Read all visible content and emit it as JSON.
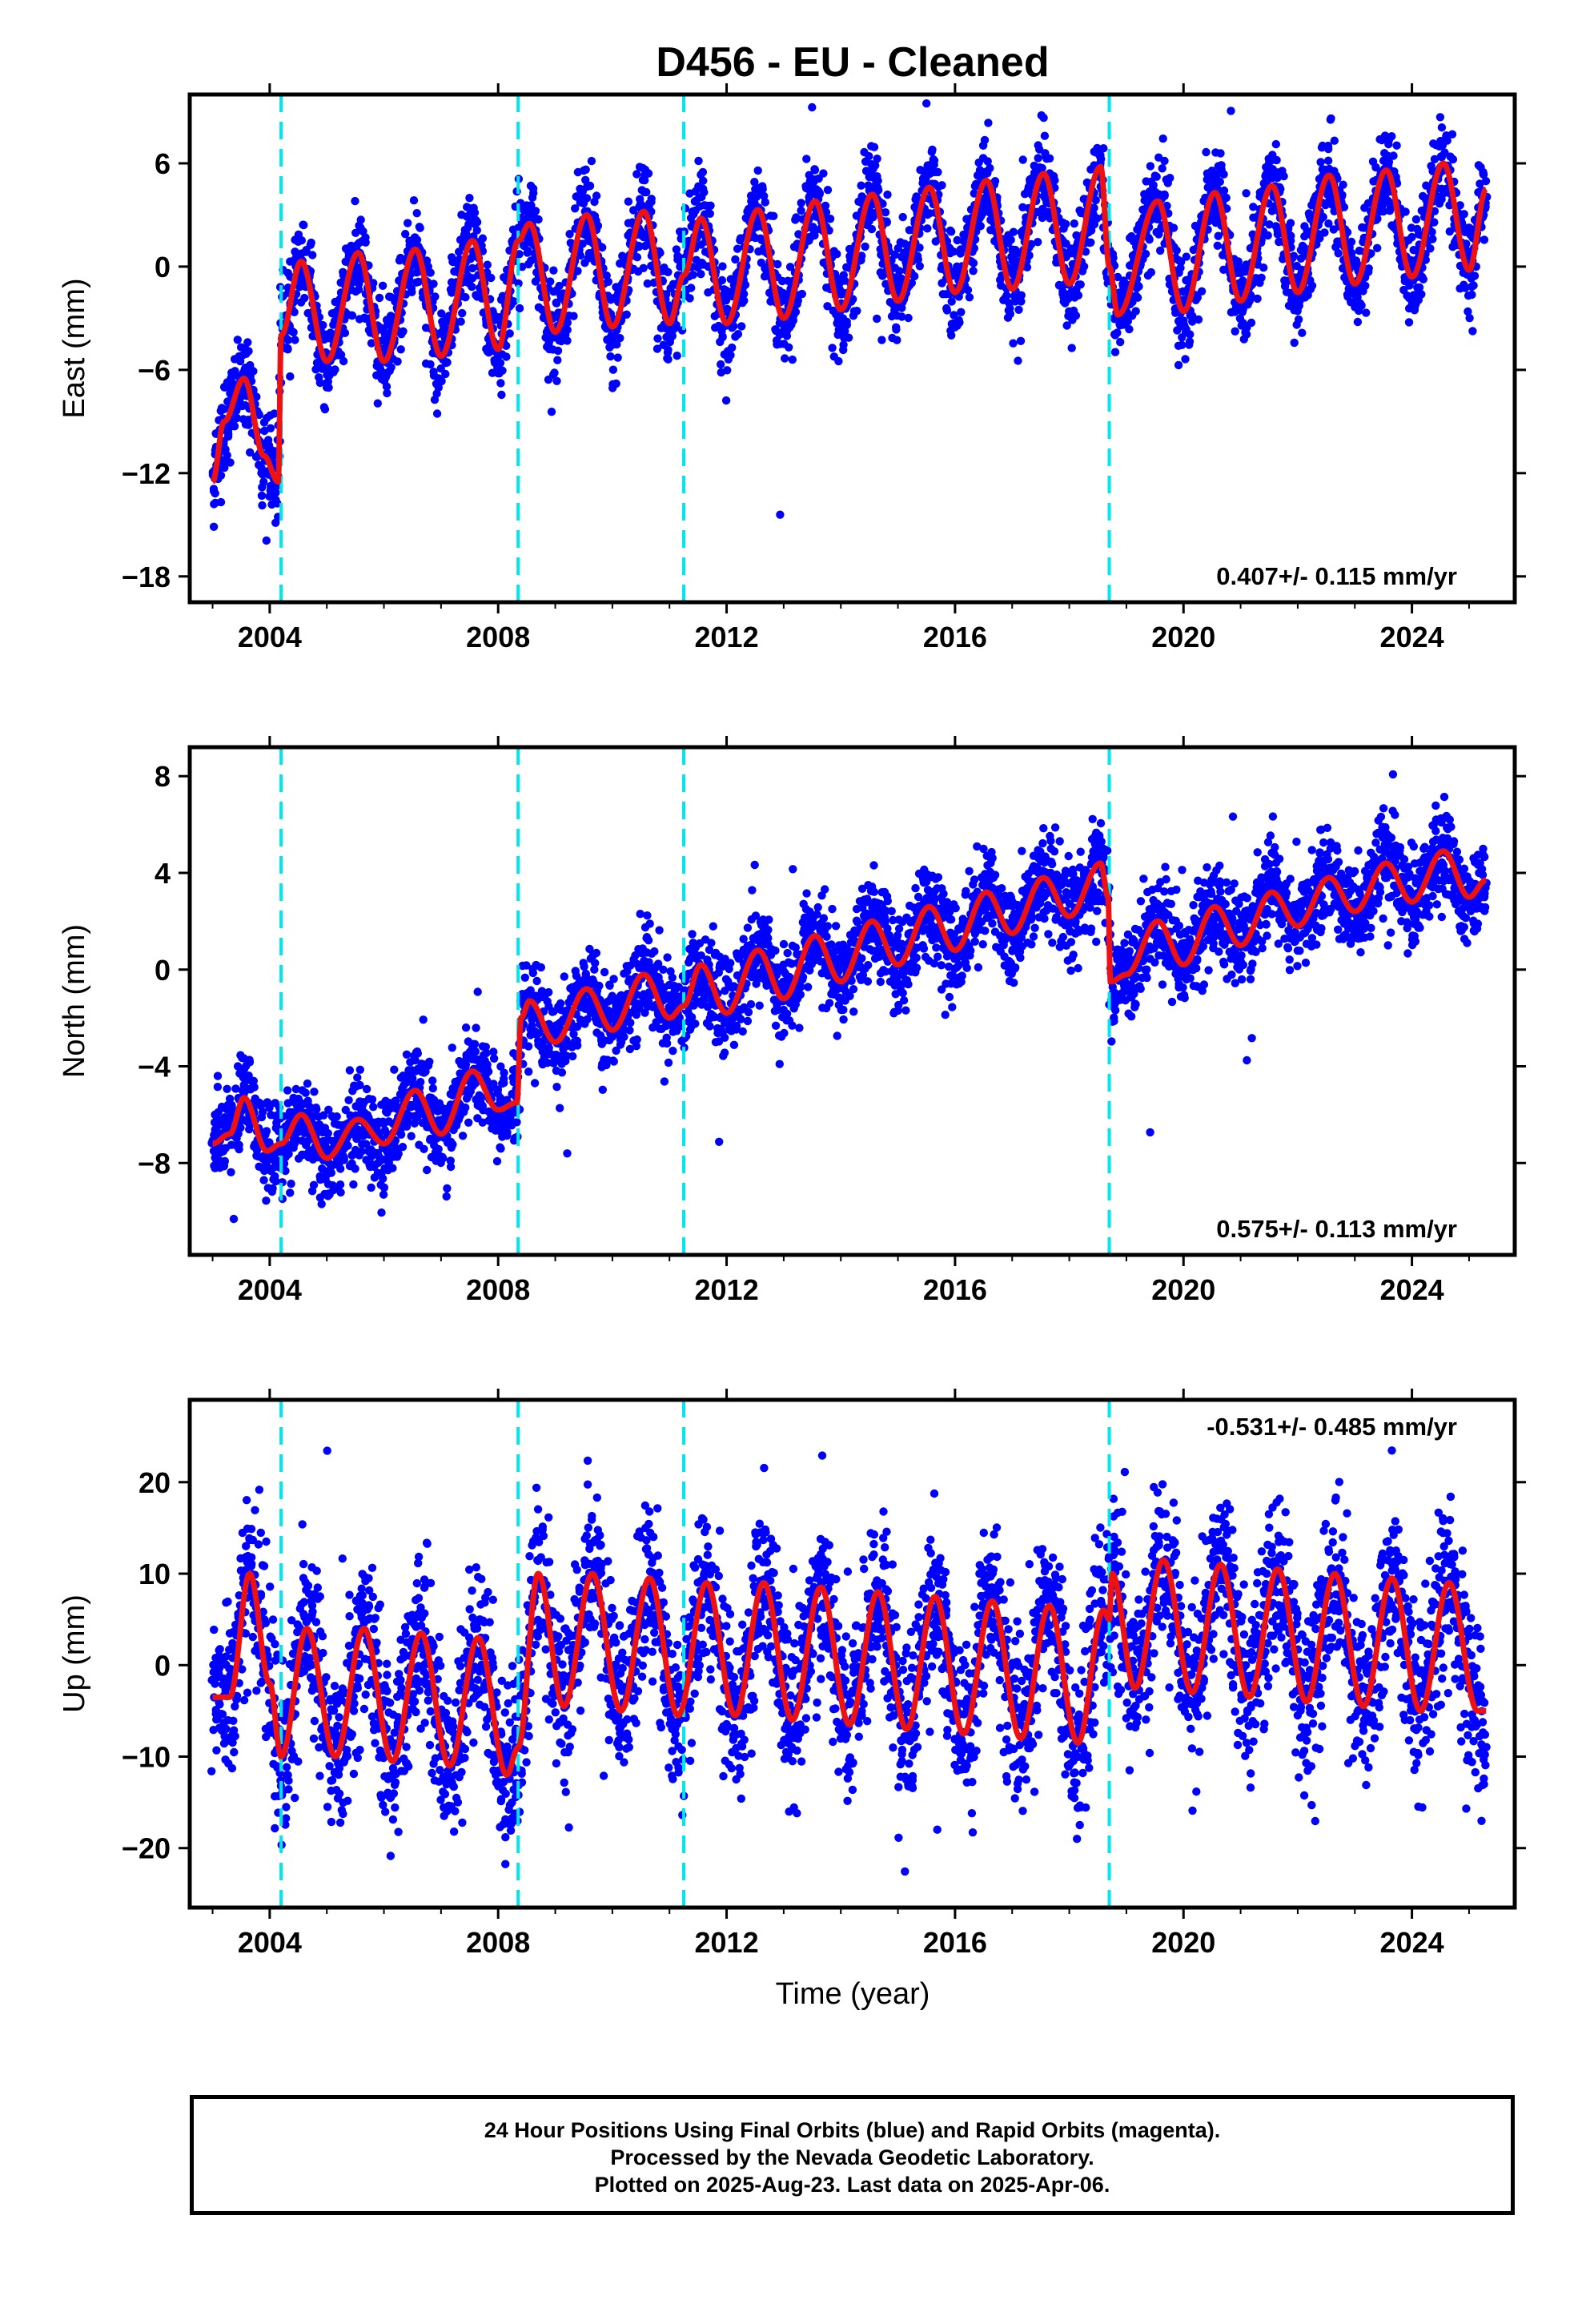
{
  "chart_data": {
    "title": "D456  - EU - Cleaned",
    "type": "scatter",
    "x_axis": {
      "label": "Time (year)",
      "range": [
        2002.6,
        2025.8
      ],
      "ticks": [
        2004,
        2008,
        2012,
        2016,
        2020,
        2024
      ]
    },
    "step_epochs": [
      2004.2,
      2008.35,
      2011.25,
      2018.7
    ],
    "series_legend": {
      "points": "Final Orbits (blue)",
      "model": "model fit (red)"
    },
    "panels": [
      {
        "name": "east",
        "ylabel": "East (mm)",
        "ylim": [
          -19.5,
          10
        ],
        "yticks": [
          -18,
          -12,
          -6,
          0,
          6
        ],
        "velocity": "0.407+/- 0.115 mm/yr",
        "velocity_placement": "bottom-right",
        "model_points": [
          [
            2003.0,
            -12.5
          ],
          [
            2003.2,
            -9.0
          ],
          [
            2003.55,
            -6.5
          ],
          [
            2003.9,
            -11.0
          ],
          [
            2004.15,
            -12.5
          ],
          [
            2004.2,
            -4.0
          ],
          [
            2004.55,
            0.3
          ],
          [
            2005.0,
            -5.5
          ],
          [
            2005.55,
            0.8
          ],
          [
            2006.0,
            -5.5
          ],
          [
            2006.55,
            1.0
          ],
          [
            2007.0,
            -5.2
          ],
          [
            2007.55,
            1.5
          ],
          [
            2008.0,
            -4.8
          ],
          [
            2008.35,
            1.5
          ],
          [
            2008.55,
            2.5
          ],
          [
            2009.0,
            -3.8
          ],
          [
            2009.55,
            3.0
          ],
          [
            2010.0,
            -3.5
          ],
          [
            2010.55,
            3.2
          ],
          [
            2011.0,
            -3.3
          ],
          [
            2011.25,
            -0.5
          ],
          [
            2011.55,
            2.8
          ],
          [
            2012.0,
            -3.3
          ],
          [
            2012.55,
            3.3
          ],
          [
            2013.0,
            -3.0
          ],
          [
            2013.55,
            3.8
          ],
          [
            2014.0,
            -2.5
          ],
          [
            2014.55,
            4.2
          ],
          [
            2015.0,
            -2.0
          ],
          [
            2015.55,
            4.6
          ],
          [
            2016.0,
            -1.5
          ],
          [
            2016.55,
            5.0
          ],
          [
            2017.0,
            -1.3
          ],
          [
            2017.55,
            5.4
          ],
          [
            2018.0,
            -1.0
          ],
          [
            2018.55,
            5.8
          ],
          [
            2018.7,
            0.0
          ],
          [
            2018.85,
            -2.8
          ],
          [
            2019.55,
            3.8
          ],
          [
            2020.0,
            -2.6
          ],
          [
            2020.55,
            4.3
          ],
          [
            2021.0,
            -2.0
          ],
          [
            2021.55,
            4.7
          ],
          [
            2022.0,
            -1.5
          ],
          [
            2022.55,
            5.3
          ],
          [
            2023.0,
            -1.0
          ],
          [
            2023.55,
            5.6
          ],
          [
            2024.0,
            -0.6
          ],
          [
            2024.55,
            6.0
          ],
          [
            2025.0,
            -0.2
          ],
          [
            2025.3,
            4.5
          ]
        ]
      },
      {
        "name": "north",
        "ylabel": "North (mm)",
        "ylim": [
          -11.8,
          9.2
        ],
        "yticks": [
          -8,
          -4,
          0,
          4,
          8
        ],
        "velocity": "0.575+/- 0.113 mm/yr",
        "velocity_placement": "bottom-right",
        "model_points": [
          [
            2003.0,
            -7.2
          ],
          [
            2003.3,
            -6.8
          ],
          [
            2003.55,
            -5.3
          ],
          [
            2003.95,
            -7.5
          ],
          [
            2004.2,
            -7.2
          ],
          [
            2004.55,
            -6.0
          ],
          [
            2005.0,
            -7.8
          ],
          [
            2005.55,
            -6.2
          ],
          [
            2006.0,
            -7.2
          ],
          [
            2006.55,
            -5.0
          ],
          [
            2007.0,
            -6.8
          ],
          [
            2007.55,
            -4.2
          ],
          [
            2008.0,
            -5.8
          ],
          [
            2008.33,
            -5.5
          ],
          [
            2008.4,
            -2.0
          ],
          [
            2008.55,
            -1.3
          ],
          [
            2009.0,
            -3.0
          ],
          [
            2009.55,
            -0.8
          ],
          [
            2010.0,
            -2.5
          ],
          [
            2010.55,
            -0.2
          ],
          [
            2011.0,
            -2.0
          ],
          [
            2011.25,
            -1.5
          ],
          [
            2011.55,
            0.2
          ],
          [
            2012.0,
            -1.8
          ],
          [
            2012.55,
            0.8
          ],
          [
            2013.0,
            -1.2
          ],
          [
            2013.55,
            1.4
          ],
          [
            2014.0,
            -0.5
          ],
          [
            2014.55,
            2.0
          ],
          [
            2015.0,
            0.2
          ],
          [
            2015.55,
            2.6
          ],
          [
            2016.0,
            0.8
          ],
          [
            2016.55,
            3.2
          ],
          [
            2017.0,
            1.5
          ],
          [
            2017.55,
            3.8
          ],
          [
            2018.0,
            2.2
          ],
          [
            2018.55,
            4.4
          ],
          [
            2018.68,
            3.0
          ],
          [
            2018.72,
            -0.5
          ],
          [
            2019.0,
            -0.2
          ],
          [
            2019.55,
            2.0
          ],
          [
            2020.0,
            0.2
          ],
          [
            2020.55,
            2.6
          ],
          [
            2021.0,
            1.0
          ],
          [
            2021.55,
            3.2
          ],
          [
            2022.0,
            1.8
          ],
          [
            2022.55,
            3.8
          ],
          [
            2023.0,
            2.4
          ],
          [
            2023.55,
            4.4
          ],
          [
            2024.0,
            2.8
          ],
          [
            2024.55,
            4.9
          ],
          [
            2025.0,
            3.0
          ],
          [
            2025.3,
            3.7
          ]
        ]
      },
      {
        "name": "up",
        "ylabel": "Up (mm)",
        "ylim": [
          -26.5,
          29
        ],
        "yticks": [
          -20,
          -10,
          0,
          10,
          20
        ],
        "velocity": "-0.531+/- 0.485 mm/yr",
        "velocity_placement": "top-right",
        "model_points": [
          [
            2003.0,
            -3.5
          ],
          [
            2003.3,
            -3.5
          ],
          [
            2003.65,
            10.0
          ],
          [
            2004.0,
            -2.0
          ],
          [
            2004.2,
            -10.0
          ],
          [
            2004.65,
            4.0
          ],
          [
            2005.15,
            -10.0
          ],
          [
            2005.65,
            4.0
          ],
          [
            2006.15,
            -10.5
          ],
          [
            2006.65,
            3.5
          ],
          [
            2007.15,
            -11.0
          ],
          [
            2007.65,
            3.0
          ],
          [
            2008.15,
            -12.0
          ],
          [
            2008.35,
            -9.0
          ],
          [
            2008.7,
            10.0
          ],
          [
            2009.15,
            -4.5
          ],
          [
            2009.65,
            10.0
          ],
          [
            2010.15,
            -5.0
          ],
          [
            2010.65,
            9.5
          ],
          [
            2011.15,
            -5.5
          ],
          [
            2011.65,
            9.0
          ],
          [
            2012.15,
            -5.5
          ],
          [
            2012.65,
            9.0
          ],
          [
            2013.15,
            -6.0
          ],
          [
            2013.65,
            8.5
          ],
          [
            2014.15,
            -6.5
          ],
          [
            2014.65,
            8.0
          ],
          [
            2015.15,
            -7.0
          ],
          [
            2015.65,
            7.5
          ],
          [
            2016.15,
            -7.5
          ],
          [
            2016.65,
            7.0
          ],
          [
            2017.15,
            -8.0
          ],
          [
            2017.65,
            6.5
          ],
          [
            2018.15,
            -8.5
          ],
          [
            2018.6,
            6.0
          ],
          [
            2018.7,
            5.0
          ],
          [
            2018.75,
            10.0
          ],
          [
            2019.15,
            -2.5
          ],
          [
            2019.65,
            11.5
          ],
          [
            2020.15,
            -3.0
          ],
          [
            2020.65,
            11.0
          ],
          [
            2021.15,
            -3.5
          ],
          [
            2021.65,
            10.5
          ],
          [
            2022.15,
            -4.0
          ],
          [
            2022.65,
            10.0
          ],
          [
            2023.15,
            -4.5
          ],
          [
            2023.65,
            9.5
          ],
          [
            2024.15,
            -5.0
          ],
          [
            2024.65,
            9.0
          ],
          [
            2025.15,
            -5.0
          ],
          [
            2025.3,
            -5.0
          ]
        ]
      }
    ]
  },
  "footer": {
    "line1": "24 Hour Positions Using Final Orbits (blue) and Rapid Orbits (magenta).",
    "line2": "Processed by the Nevada Geodetic Laboratory.",
    "line3": "Plotted on 2025-Aug-23. Last data on 2025-Apr-06."
  },
  "colors": {
    "points": "#0000ff",
    "model": "#ee1111",
    "steps": "#00e5ee",
    "frame": "#000000"
  }
}
